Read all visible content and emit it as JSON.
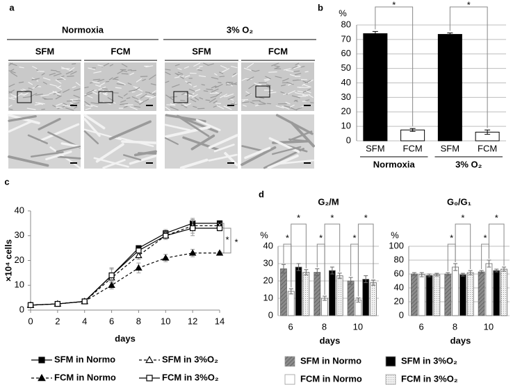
{
  "panel_a": {
    "label": "a",
    "conditions": [
      {
        "label": "Normoxia",
        "media": [
          "SFM",
          "FCM"
        ]
      },
      {
        "label": "3% O₂",
        "media": [
          "SFM",
          "FCM"
        ]
      }
    ]
  },
  "chart_data": [
    {
      "type": "bar",
      "label": "b",
      "ylabel": "%",
      "categories": [
        "SFM",
        "FCM",
        "SFM",
        "FCM"
      ],
      "groups": [
        "Normoxia",
        "3% O₂"
      ],
      "values": [
        74,
        7.5,
        73.5,
        6
      ],
      "errors": [
        1.5,
        1,
        1,
        1.5
      ],
      "colors": [
        "#000000",
        "#ffffff",
        "#000000",
        "#ffffff"
      ],
      "ylim": [
        0,
        80
      ],
      "yticks": [
        0,
        10,
        20,
        30,
        40,
        50,
        60,
        70,
        80
      ],
      "grid": true,
      "annotations": [
        "*",
        "*"
      ]
    },
    {
      "type": "line",
      "label": "c",
      "ylabel": "×10⁴ cells",
      "xlabel": "days",
      "x": [
        0,
        2,
        4,
        6,
        8,
        10,
        12,
        14
      ],
      "xlim": [
        0,
        14
      ],
      "xticks": [
        0,
        2,
        4,
        6,
        8,
        10,
        12,
        14
      ],
      "ylim": [
        0,
        40
      ],
      "yticks": [
        0,
        10,
        20,
        30,
        40
      ],
      "series": [
        {
          "name": "SFM in Normo",
          "color": "#000000",
          "marker": "square",
          "filled": true,
          "dashed": false,
          "values": [
            2,
            2.5,
            3.5,
            14,
            25,
            31,
            35,
            35
          ],
          "errors": [
            0.5,
            0.5,
            0.8,
            3,
            1,
            1.5,
            1.5,
            1
          ]
        },
        {
          "name": "SFM in 3%O₂",
          "color": "#000000",
          "marker": "triangle",
          "filled": false,
          "dashed": true,
          "values": [
            2,
            2.5,
            3.5,
            13,
            22,
            30,
            34,
            34
          ],
          "errors": [
            0.5,
            0.5,
            0.8,
            4,
            1.5,
            1.5,
            3,
            1
          ]
        },
        {
          "name": "FCM in Normo",
          "color": "#000000",
          "marker": "triangle",
          "filled": true,
          "dashed": true,
          "values": [
            2,
            2.5,
            3.5,
            10,
            17,
            21,
            23,
            23
          ],
          "errors": [
            0.5,
            0.5,
            0.8,
            1.5,
            2,
            1.5,
            1.5,
            0.5
          ]
        },
        {
          "name": "FCM in 3%O₂",
          "color": "#000000",
          "marker": "square",
          "filled": false,
          "dashed": false,
          "values": [
            2,
            2.5,
            3.5,
            14,
            24,
            30,
            33,
            33
          ],
          "errors": [
            0.5,
            0.5,
            0.8,
            2.5,
            1,
            1.5,
            3,
            1
          ]
        }
      ],
      "annotations": [
        "*",
        "*"
      ]
    },
    {
      "type": "grouped_bar",
      "label": "d",
      "ylabel": "%",
      "xlabel": "days",
      "categories": [
        "6",
        "8",
        "10"
      ],
      "series": [
        {
          "name": "SFM in Normo",
          "color": "#8c8c8c",
          "pattern": "hatch"
        },
        {
          "name": "FCM in Normo",
          "color": "#ffffff",
          "pattern": null
        },
        {
          "name": "SFM in 3%O₂",
          "color": "#000000",
          "pattern": null
        },
        {
          "name": "FCM in 3%O₂",
          "color": "#f2f2f2",
          "pattern": "dots"
        }
      ],
      "panels": [
        {
          "title": "G₂/M",
          "ylim": [
            0,
            40
          ],
          "yticks": [
            0,
            10,
            20,
            30,
            40
          ],
          "values": [
            [
              27,
              25,
              20
            ],
            [
              14,
              10,
              9
            ],
            [
              28,
              26,
              21
            ],
            [
              25,
              23,
              19
            ]
          ],
          "errors": [
            [
              2.5,
              2,
              2
            ],
            [
              1.5,
              1.2,
              1.2
            ],
            [
              2,
              2,
              2
            ],
            [
              1.5,
              1.5,
              1.5
            ]
          ],
          "annotations": [
            "*",
            "*",
            "*",
            "*",
            "*",
            "*"
          ]
        },
        {
          "title": "G₀/G₁",
          "ylim": [
            0,
            100
          ],
          "yticks": [
            0,
            20,
            40,
            60,
            80,
            100
          ],
          "values": [
            [
              60,
              60,
              63
            ],
            [
              59,
              70,
              75
            ],
            [
              58,
              59,
              65
            ],
            [
              59,
              62,
              67
            ]
          ],
          "errors": [
            [
              2,
              2,
              2
            ],
            [
              3,
              5,
              5
            ],
            [
              2,
              2,
              2
            ],
            [
              2,
              3,
              3
            ]
          ],
          "annotations": [
            "*",
            "*",
            "*",
            "*"
          ]
        }
      ]
    }
  ]
}
